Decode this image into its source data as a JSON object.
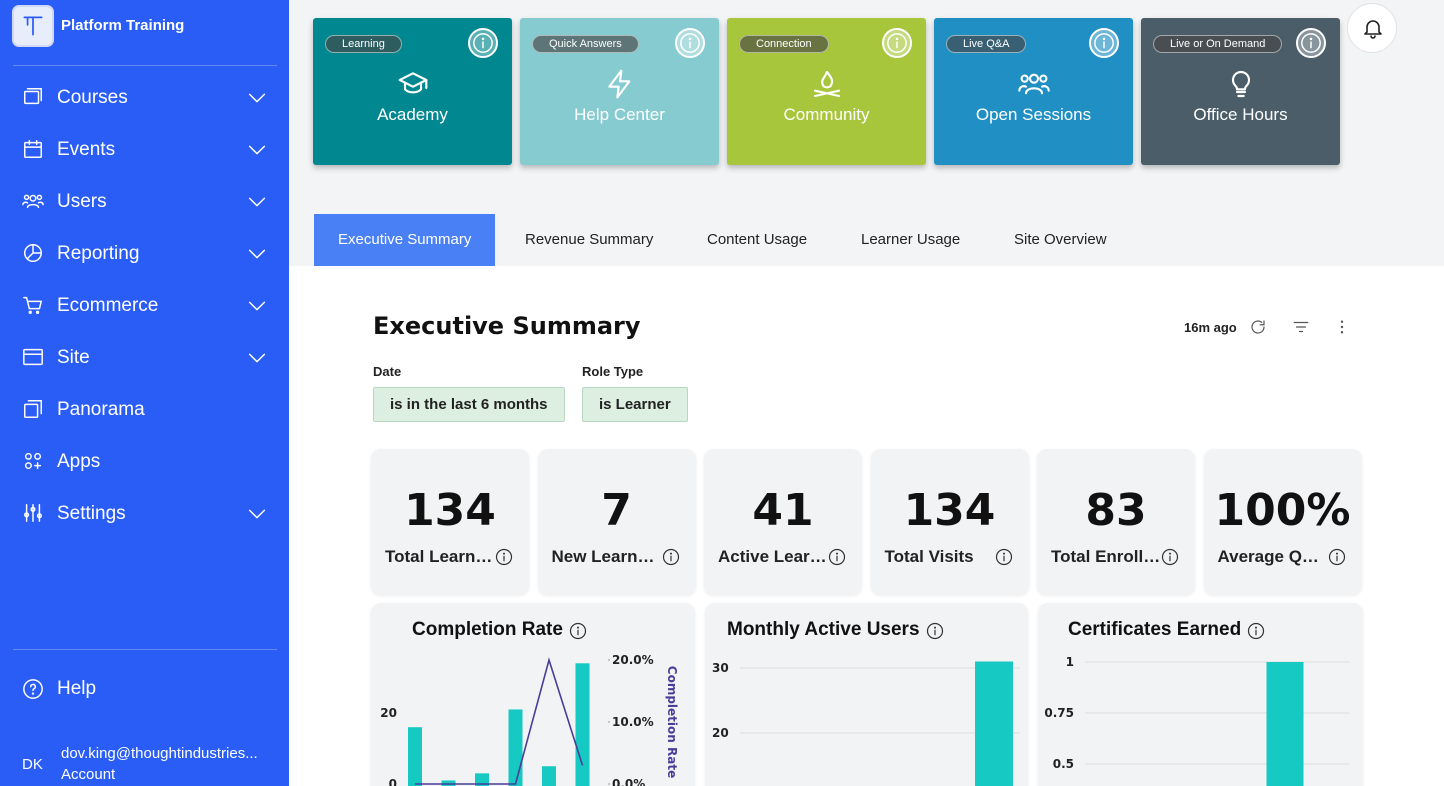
{
  "sidebar": {
    "brand": "Platform Training",
    "nav": [
      {
        "label": "Courses",
        "expandable": true
      },
      {
        "label": "Events",
        "expandable": true
      },
      {
        "label": "Users",
        "expandable": true
      },
      {
        "label": "Reporting",
        "expandable": true
      },
      {
        "label": "Ecommerce",
        "expandable": true
      },
      {
        "label": "Site",
        "expandable": true
      },
      {
        "label": "Panorama",
        "expandable": false
      },
      {
        "label": "Apps",
        "expandable": false
      },
      {
        "label": "Settings",
        "expandable": true
      }
    ],
    "help": "Help",
    "user": {
      "initials": "DK",
      "email": "dov.king@thoughtindustries...",
      "link": "Account"
    }
  },
  "tiles": [
    {
      "badge": "Learning",
      "title": "Academy",
      "color": "#00878f"
    },
    {
      "badge": "Quick Answers",
      "title": "Help Center",
      "color": "#86cbd0"
    },
    {
      "badge": "Connection",
      "title": "Community",
      "color": "#a8c63b"
    },
    {
      "badge": "Live Q&A",
      "title": "Open Sessions",
      "color": "#1f8fc4"
    },
    {
      "badge": "Live or On Demand",
      "title": "Office Hours",
      "color": "#4a5d68"
    }
  ],
  "tabs": [
    {
      "label": "Executive Summary",
      "active": true
    },
    {
      "label": "Revenue Summary",
      "active": false
    },
    {
      "label": "Content Usage",
      "active": false
    },
    {
      "label": "Learner Usage",
      "active": false
    },
    {
      "label": "Site Overview",
      "active": false
    }
  ],
  "dashboard": {
    "title": "Executive Summary",
    "updated": "16m ago",
    "filters": [
      {
        "label": "Date",
        "value": "is in the last 6 months"
      },
      {
        "label": "Role Type",
        "value": "is Learner"
      }
    ],
    "kpis": [
      {
        "value": "134",
        "label": "Total Learn…"
      },
      {
        "value": "7",
        "label": "New Learn…"
      },
      {
        "value": "41",
        "label": "Active Lear…"
      },
      {
        "value": "134",
        "label": "Total Visits"
      },
      {
        "value": "83",
        "label": "Total Enroll…"
      },
      {
        "value": "100%",
        "label": "Average Q…"
      }
    ],
    "charts": [
      {
        "type": "bar",
        "title": "Completion Rate",
        "y2_label": "Completion Rate",
        "yticks": [
          0,
          20
        ],
        "y2ticks": [
          {
            "value": 0,
            "label": "0.0%"
          },
          {
            "value": 10,
            "label": "10.0%"
          },
          {
            "value": 20,
            "label": "20.0%"
          }
        ],
        "series": [
          {
            "type": "bar",
            "color": "#17c9c3",
            "values": [
              16,
              1,
              3,
              21,
              5,
              34
            ]
          },
          {
            "type": "line",
            "axis": "y2",
            "color": "#4b3c98",
            "values": [
              0,
              0,
              0,
              0,
              20,
              3
            ]
          }
        ]
      },
      {
        "type": "bar",
        "title": "Monthly Active Users",
        "yticks": [
          20,
          30
        ],
        "grid": true,
        "series": [
          {
            "type": "bar",
            "color": "#17c9c3",
            "values": [
              31
            ]
          }
        ]
      },
      {
        "type": "bar",
        "title": "Certificates Earned",
        "yticks": [
          0.5,
          0.75,
          1
        ],
        "grid": true,
        "series": [
          {
            "type": "bar",
            "color": "#17c9c3",
            "values": [
              1
            ]
          }
        ]
      }
    ]
  }
}
